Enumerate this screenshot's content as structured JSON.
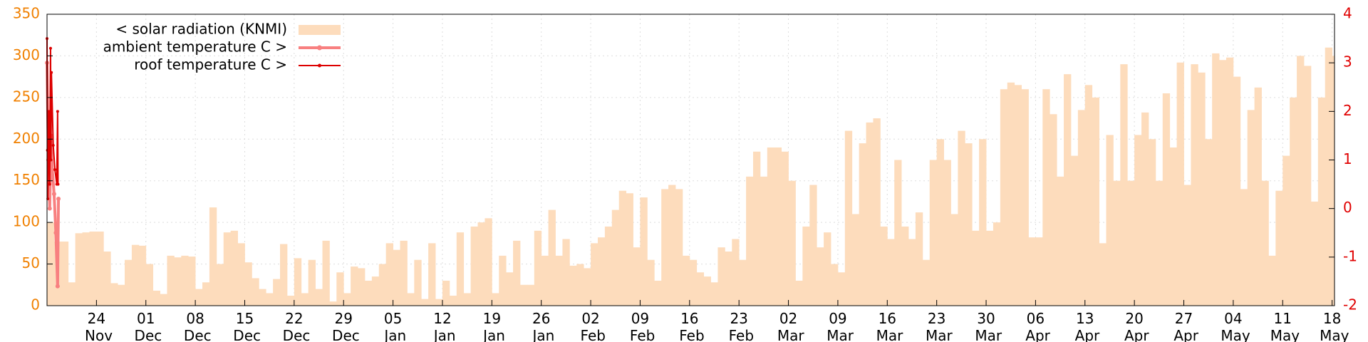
{
  "chart_data": {
    "type": "bar",
    "categories": [
      null,
      null,
      null,
      null,
      null,
      null,
      null,
      "24 Nov",
      null,
      null,
      null,
      null,
      null,
      null,
      "01 Dec",
      null,
      null,
      null,
      null,
      null,
      null,
      "08 Dec",
      null,
      null,
      null,
      null,
      null,
      null,
      "15 Dec",
      null,
      null,
      null,
      null,
      null,
      null,
      "22 Dec",
      null,
      null,
      null,
      null,
      null,
      null,
      "29 Dec",
      null,
      null,
      null,
      null,
      null,
      null,
      "05 Jan",
      null,
      null,
      null,
      null,
      null,
      null,
      "12 Jan",
      null,
      null,
      null,
      null,
      null,
      null,
      "19 Jan",
      null,
      null,
      null,
      null,
      null,
      null,
      "26 Jan",
      null,
      null,
      null,
      null,
      null,
      null,
      "02 Feb",
      null,
      null,
      null,
      null,
      null,
      null,
      "09 Feb",
      null,
      null,
      null,
      null,
      null,
      null,
      "16 Feb",
      null,
      null,
      null,
      null,
      null,
      null,
      "23 Feb",
      null,
      null,
      null,
      null,
      null,
      null,
      "02 Mar",
      null,
      null,
      null,
      null,
      null,
      null,
      "09 Mar",
      null,
      null,
      null,
      null,
      null,
      null,
      "16 Mar",
      null,
      null,
      null,
      null,
      null,
      null,
      "23 Mar",
      null,
      null,
      null,
      null,
      null,
      null,
      "30 Mar",
      null,
      null,
      null,
      null,
      null,
      null,
      "06 Apr",
      null,
      null,
      null,
      null,
      null,
      null,
      "13 Apr",
      null,
      null,
      null,
      null,
      null,
      null,
      "20 Apr",
      null,
      null,
      null,
      null,
      null,
      null,
      "27 Apr",
      null,
      null,
      null,
      null,
      null,
      null,
      "04 May",
      null,
      null,
      null,
      null,
      null,
      null,
      "11 May",
      null,
      null,
      null,
      null,
      null,
      null,
      "18 May"
    ],
    "series": [
      {
        "name": "< solar radiation (KNMI)",
        "color": "#fddcbc",
        "values": [
          100,
          77,
          77,
          28,
          87,
          88,
          89,
          89,
          65,
          27,
          25,
          55,
          73,
          72,
          50,
          18,
          14,
          60,
          58,
          60,
          59,
          20,
          28,
          118,
          50,
          88,
          90,
          75,
          52,
          33,
          20,
          15,
          32,
          74,
          12,
          57,
          15,
          55,
          20,
          78,
          5,
          40,
          15,
          47,
          45,
          30,
          35,
          50,
          75,
          67,
          78,
          15,
          55,
          8,
          75,
          8,
          30,
          12,
          88,
          15,
          95,
          100,
          105,
          15,
          60,
          40,
          78,
          25,
          25,
          90,
          60,
          115,
          60,
          80,
          48,
          50,
          45,
          75,
          82,
          95,
          115,
          138,
          135,
          70,
          130,
          55,
          30,
          140,
          145,
          140,
          60,
          55,
          40,
          35,
          28,
          70,
          65,
          80,
          55,
          155,
          185,
          155,
          190,
          190,
          185,
          150,
          30,
          95,
          145,
          70,
          88,
          50,
          40,
          210,
          110,
          195,
          220,
          225,
          95,
          80,
          175,
          95,
          80,
          112,
          55,
          175,
          200,
          175,
          110,
          210,
          195,
          90,
          200,
          90,
          100,
          260,
          268,
          265,
          260,
          82,
          82,
          260,
          230,
          155,
          278,
          180,
          235,
          265,
          250,
          75,
          205,
          150,
          290,
          150,
          205,
          232,
          200,
          150,
          255,
          190,
          292,
          145,
          290,
          280,
          200,
          303,
          295,
          298,
          275,
          140,
          235,
          262,
          150,
          60,
          138,
          180,
          250,
          300,
          288,
          125,
          250,
          310,
          300
        ]
      },
      {
        "name": "ambient temperature C >",
        "color": "#f88080",
        "axis": "y2",
        "x": [
          0,
          0.19,
          0.38,
          0.56,
          0.75,
          1.0,
          1.25,
          1.5,
          1.62
        ],
        "values": [
          3.0,
          1.0,
          0.0,
          1.5,
          0.8,
          0.3,
          -0.5,
          -1.6,
          0.2
        ]
      },
      {
        "name": "roof temperature C >",
        "color": "#dd0000",
        "axis": "y2",
        "x": [
          0,
          0.06,
          0.12,
          0.25,
          0.38,
          0.5,
          0.56,
          0.62,
          0.88,
          1.12,
          1.38,
          1.5,
          1.56
        ],
        "values": [
          3.5,
          1.2,
          0.2,
          2.0,
          0.5,
          3.3,
          1.0,
          2.8,
          1.3,
          0.8,
          0.5,
          2.0,
          0.5
        ]
      }
    ],
    "ylim": [
      0,
      350
    ],
    "yticks": [
      0,
      50,
      100,
      150,
      200,
      250,
      300,
      350
    ],
    "ytick_color": "#f08000",
    "y2lim": [
      -2,
      4
    ],
    "y2ticks": [
      -2,
      -1,
      0,
      1,
      2,
      3,
      4
    ],
    "y2tick_color": "#e00000",
    "grid": true,
    "legend": "top-left"
  }
}
